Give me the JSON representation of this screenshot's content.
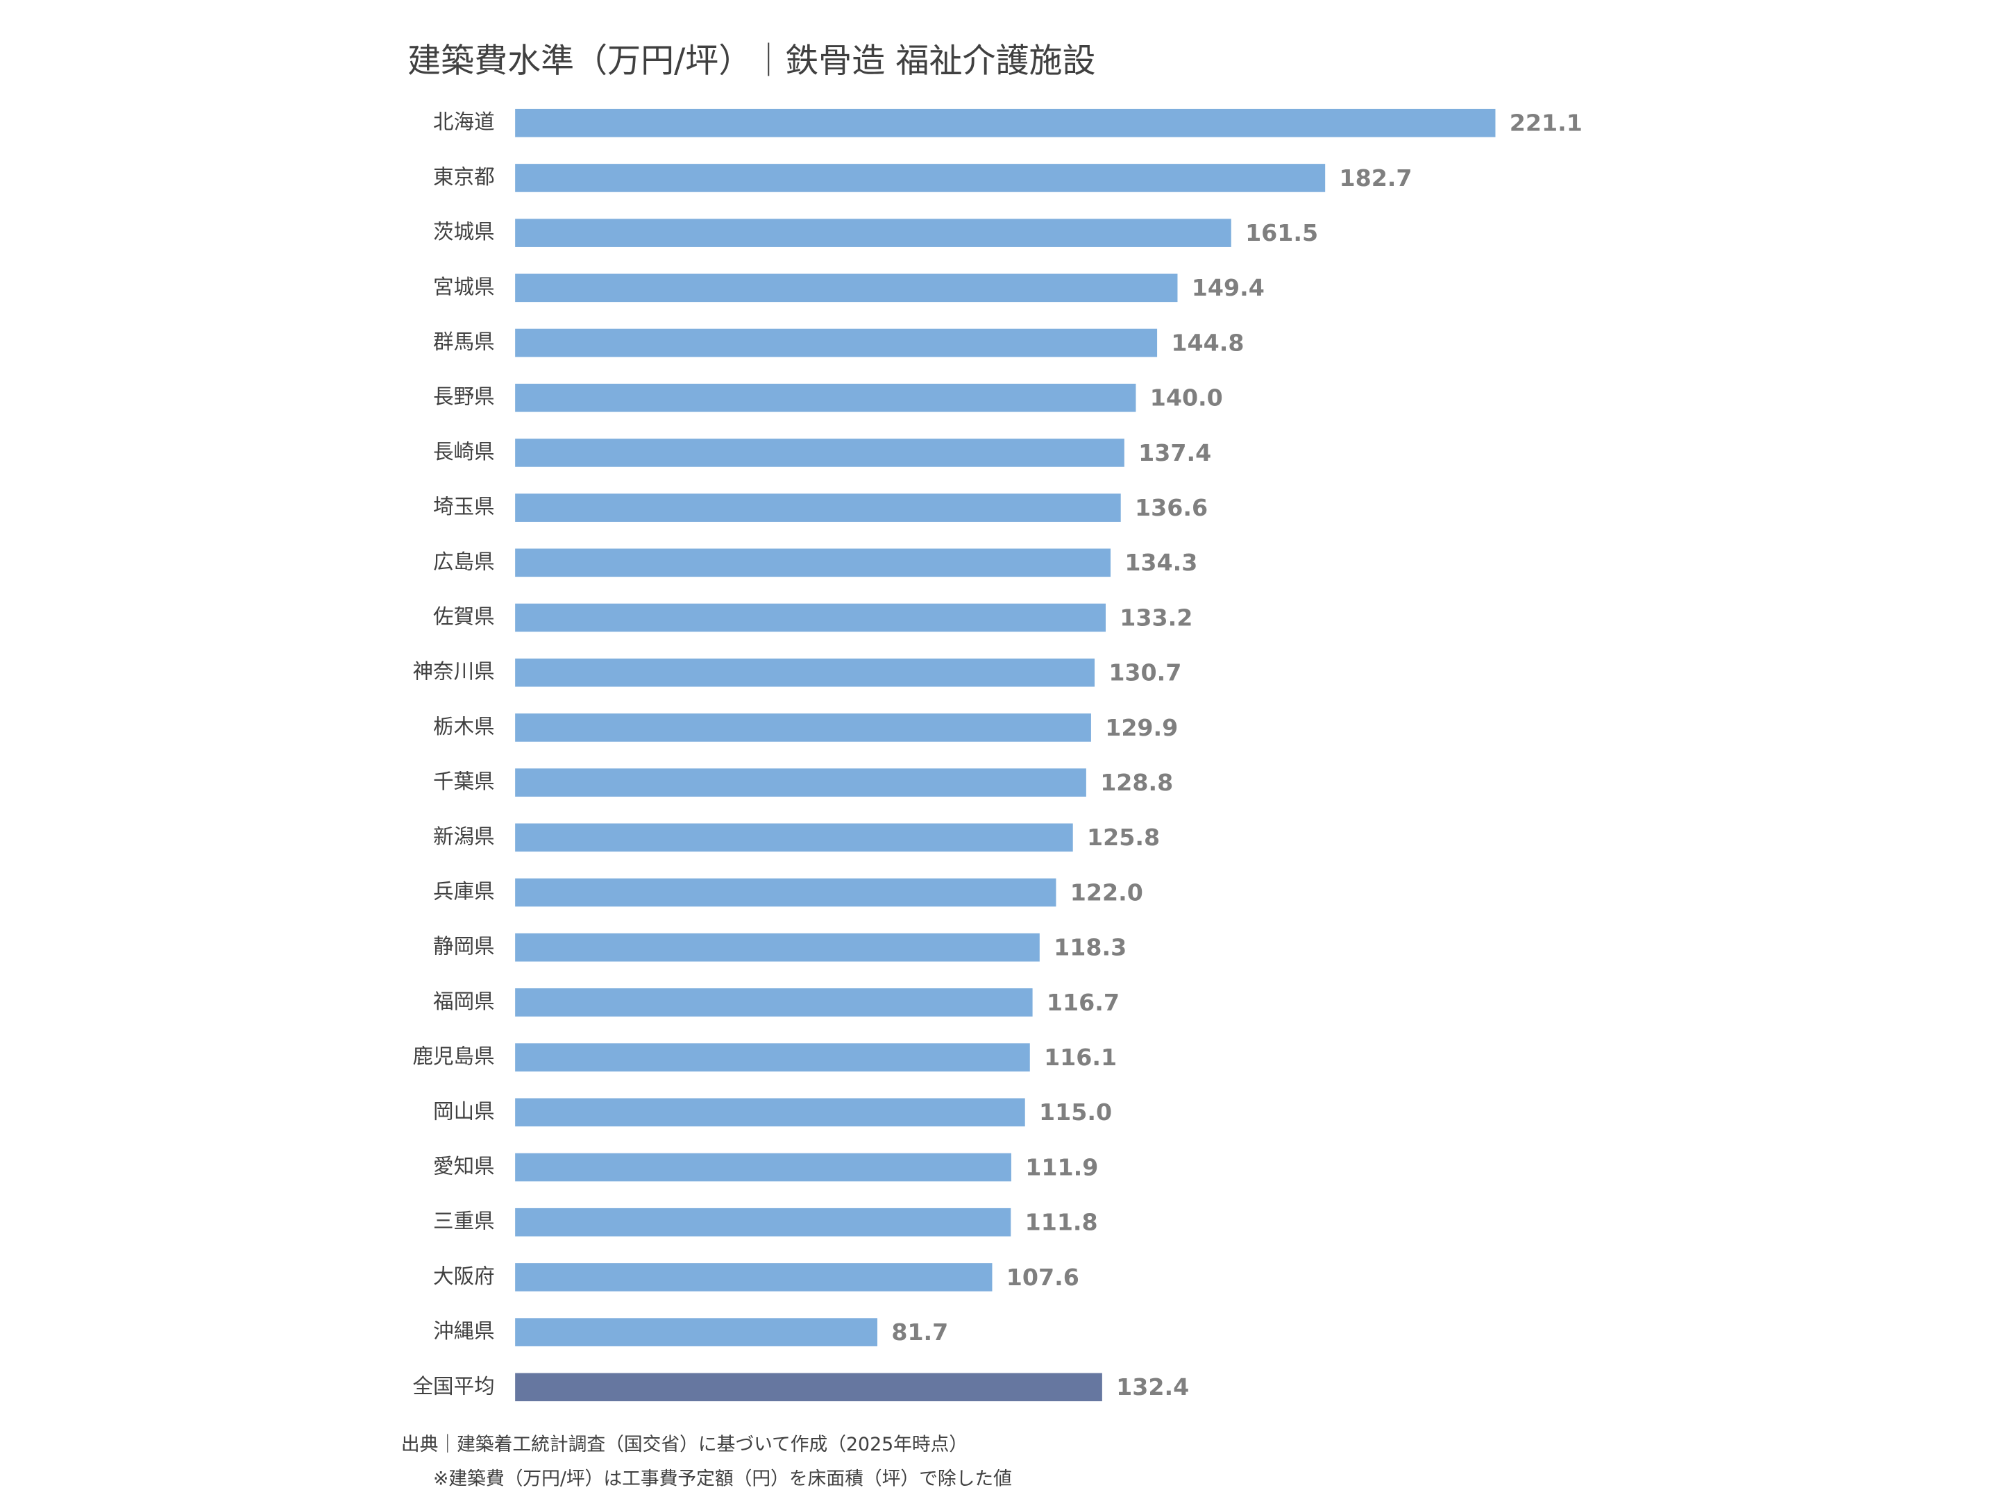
{
  "chart_data": {
    "type": "hbar",
    "title": "建築費水準（万円/坪）｜鉄骨造 福祉介護施設",
    "categories": [
      "北海道",
      "東京都",
      "茨城県",
      "宮城県",
      "群馬県",
      "長野県",
      "長崎県",
      "埼玉県",
      "広島県",
      "佐賀県",
      "神奈川県",
      "栃木県",
      "千葉県",
      "新潟県",
      "兵庫県",
      "静岡県",
      "福岡県",
      "鹿児島県",
      "岡山県",
      "愛知県",
      "三重県",
      "大阪府",
      "沖縄県",
      "全国平均"
    ],
    "values": [
      221.1,
      182.7,
      161.5,
      149.4,
      144.8,
      140.0,
      137.4,
      136.6,
      134.3,
      133.2,
      130.7,
      129.9,
      128.8,
      125.8,
      122.0,
      118.3,
      116.7,
      116.1,
      115.0,
      111.9,
      111.8,
      107.6,
      81.7,
      132.4
    ],
    "value_labels": [
      "221.1",
      "182.7",
      "161.5",
      "149.4",
      "144.8",
      "140.0",
      "137.4",
      "136.6",
      "134.3",
      "133.2",
      "130.7",
      "129.9",
      "128.8",
      "125.8",
      "122.0",
      "118.3",
      "116.7",
      "116.1",
      "115.0",
      "111.9",
      "111.8",
      "107.6",
      "81.7",
      "132.4"
    ],
    "colors": [
      "#7eaedd",
      "#7eaedd",
      "#7eaedd",
      "#7eaedd",
      "#7eaedd",
      "#7eaedd",
      "#7eaedd",
      "#7eaedd",
      "#7eaedd",
      "#7eaedd",
      "#7eaedd",
      "#7eaedd",
      "#7eaedd",
      "#7eaedd",
      "#7eaedd",
      "#7eaedd",
      "#7eaedd",
      "#7eaedd",
      "#7eaedd",
      "#7eaedd",
      "#7eaedd",
      "#7eaedd",
      "#7eaedd",
      "#6677a0"
    ],
    "source": "出典｜建築着工統計調査（国交省）に基づいて作成（2025年時点）",
    "note": "※建築費（万円/坪）は工事費予定額（円）を床面積（坪）で除した値"
  }
}
